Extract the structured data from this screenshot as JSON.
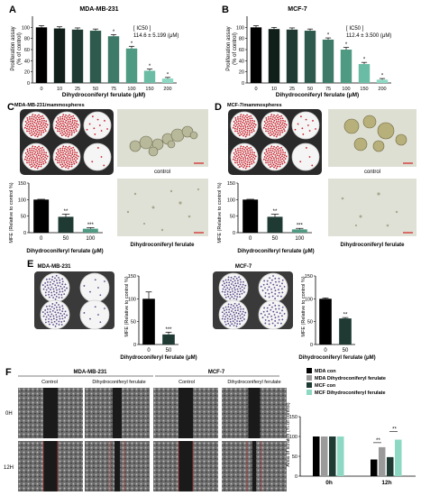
{
  "panels": {
    "A": {
      "letter": "A",
      "title": "MDA-MB-231",
      "ylabel": "Proliferation assay\n(% of control)",
      "xlabel": "Dihydroconiferyl ferulate (μM)",
      "ic50_label": "[ IC50 ]",
      "ic50_value": "114.6 ± 5.199 (μM)"
    },
    "B": {
      "letter": "B",
      "title": "MCF-7",
      "ylabel": "Proliferation assay\n(% of control)",
      "xlabel": "Dihydroconiferyl ferulate (μM)",
      "ic50_label": "[ IC50 ]",
      "ic50_value": "112.4 ± 3.500 (μM)"
    },
    "C": {
      "letter": "C",
      "title": "MDA-MB-231/mammospheres",
      "control_label": "control",
      "treat_label": "Dihydroconiferyl ferulate",
      "ylabel": "MFE (Relative to control %)",
      "xlabel": "Dihydroconiferyl ferulate (μM)"
    },
    "D": {
      "letter": "D",
      "title": "MCF-7/mammospheres",
      "control_label": "control",
      "treat_label": "Dihydroconiferyl ferulate",
      "ylabel": "MFE (Relative to control %)",
      "xlabel": "Dihydroconiferyl ferulate (μM)"
    },
    "E": {
      "letter": "E",
      "title_left": "MDA-MB-231",
      "title_right": "MCF-7",
      "ylabel": "MFE (Relative to control %)",
      "xlabel": "Dihydroconiferyl ferulate (μM)"
    },
    "F": {
      "letter": "F",
      "title_left": "MDA-MB-231",
      "title_right": "MCF-7",
      "col_control": "Control",
      "col_treat": "Dihydroconiferyl ferulate",
      "row_0h": "0H",
      "row_12h": "12H",
      "ylabel": "Area of scratch (% of control)"
    }
  },
  "chart_data": [
    {
      "id": "A",
      "type": "bar",
      "categories": [
        "0",
        "10",
        "25",
        "50",
        "75",
        "100",
        "150",
        "200"
      ],
      "values": [
        100,
        98,
        96,
        94,
        84,
        62,
        22,
        8
      ],
      "errors": [
        3,
        3,
        3,
        3,
        3,
        4,
        3,
        2
      ],
      "sig": [
        "",
        "",
        "",
        "",
        "*",
        "*",
        "*",
        "*"
      ],
      "ylim": [
        0,
        120
      ],
      "yticks": [
        0,
        20,
        40,
        60,
        80,
        100
      ],
      "colors": [
        "#000000",
        "#101f1a",
        "#1e3a33",
        "#2e5a4d",
        "#3d7a68",
        "#4f9a83",
        "#6abca4",
        "#8cd8c2"
      ]
    },
    {
      "id": "B",
      "type": "bar",
      "categories": [
        "0",
        "10",
        "25",
        "50",
        "75",
        "100",
        "150",
        "200"
      ],
      "values": [
        100,
        97,
        96,
        94,
        78,
        60,
        34,
        6
      ],
      "errors": [
        3,
        3,
        3,
        3,
        3,
        4,
        3,
        2
      ],
      "sig": [
        "",
        "",
        "",
        "",
        "*",
        "*",
        "*",
        "*"
      ],
      "ylim": [
        0,
        120
      ],
      "yticks": [
        0,
        20,
        40,
        60,
        80,
        100
      ],
      "colors": [
        "#000000",
        "#101f1a",
        "#1e3a33",
        "#2e5a4d",
        "#3d7a68",
        "#4f9a83",
        "#6abca4",
        "#8cd8c2"
      ]
    },
    {
      "id": "C",
      "type": "bar",
      "categories": [
        "0",
        "50",
        "100"
      ],
      "values": [
        100,
        48,
        12
      ],
      "errors": [
        1,
        8,
        3
      ],
      "sig": [
        "",
        "**",
        "***"
      ],
      "ylim": [
        0,
        150
      ],
      "yticks": [
        0,
        50,
        100,
        150
      ],
      "colors": [
        "#000000",
        "#1e3a33",
        "#4f9a83"
      ]
    },
    {
      "id": "D",
      "type": "bar",
      "categories": [
        "0",
        "50",
        "100"
      ],
      "values": [
        100,
        48,
        10
      ],
      "errors": [
        1,
        8,
        3
      ],
      "sig": [
        "",
        "**",
        "***"
      ],
      "ylim": [
        0,
        150
      ],
      "yticks": [
        0,
        50,
        100,
        150
      ],
      "colors": [
        "#000000",
        "#1e3a33",
        "#4f9a83"
      ]
    },
    {
      "id": "E1",
      "type": "bar",
      "categories": [
        "0",
        "50"
      ],
      "values": [
        100,
        22
      ],
      "errors": [
        15,
        5
      ],
      "sig": [
        "",
        "***"
      ],
      "ylim": [
        0,
        150
      ],
      "yticks": [
        0,
        50,
        100,
        150
      ],
      "colors": [
        "#000000",
        "#1e3a33"
      ]
    },
    {
      "id": "E2",
      "type": "bar",
      "categories": [
        "0",
        "50"
      ],
      "values": [
        100,
        57
      ],
      "errors": [
        2,
        2
      ],
      "sig": [
        "",
        "**"
      ],
      "ylim": [
        0,
        150
      ],
      "yticks": [
        0,
        50,
        100,
        150
      ],
      "colors": [
        "#000000",
        "#1e3a33"
      ]
    },
    {
      "id": "F",
      "type": "bar",
      "categories": [
        "0h",
        "12h"
      ],
      "series": [
        {
          "name": "MDA con",
          "values": [
            100,
            42
          ],
          "color": "#000000"
        },
        {
          "name": "MDA Dihydroconiferyl ferulate",
          "values": [
            100,
            73
          ],
          "color": "#9a9a9a"
        },
        {
          "name": "MCF con",
          "values": [
            100,
            48
          ],
          "color": "#1e3a33"
        },
        {
          "name": "MCF Dihydroconiferyl ferulate",
          "values": [
            100,
            92
          ],
          "color": "#8cd8c2"
        }
      ],
      "sig_12h": [
        "**",
        "**"
      ],
      "ylim": [
        0,
        150
      ],
      "yticks": [
        0,
        50,
        100,
        150
      ]
    }
  ]
}
